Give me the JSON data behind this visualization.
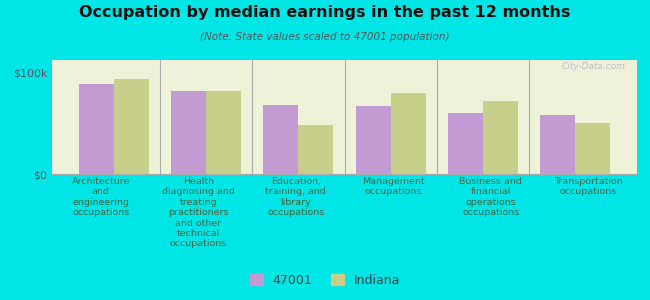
{
  "title": "Occupation by median earnings in the past 12 months",
  "subtitle": "(Note: State values scaled to 47001 population)",
  "background_color": "#00e5e5",
  "plot_bg_color": "#eef2d8",
  "categories": [
    "Architecture\nand\nengineering\noccupations",
    "Health\ndiagnosing and\ntreating\npractitioners\nand other\ntechnical\noccupations",
    "Education,\ntraining, and\nlibrary\noccupations",
    "Management\noccupations",
    "Business and\nfinancial\noperations\noccupations",
    "Transportation\noccupations"
  ],
  "values_47001": [
    88000,
    82000,
    68000,
    67000,
    60000,
    58000
  ],
  "values_indiana": [
    93000,
    82000,
    48000,
    80000,
    72000,
    50000
  ],
  "color_47001": "#c39bd3",
  "color_indiana": "#c8cf8a",
  "ylim_max": 100000,
  "ytick_labels": [
    "$0",
    "$100k"
  ],
  "legend_label_47001": "47001",
  "legend_label_indiana": "Indiana",
  "watermark": "City-Data.com"
}
